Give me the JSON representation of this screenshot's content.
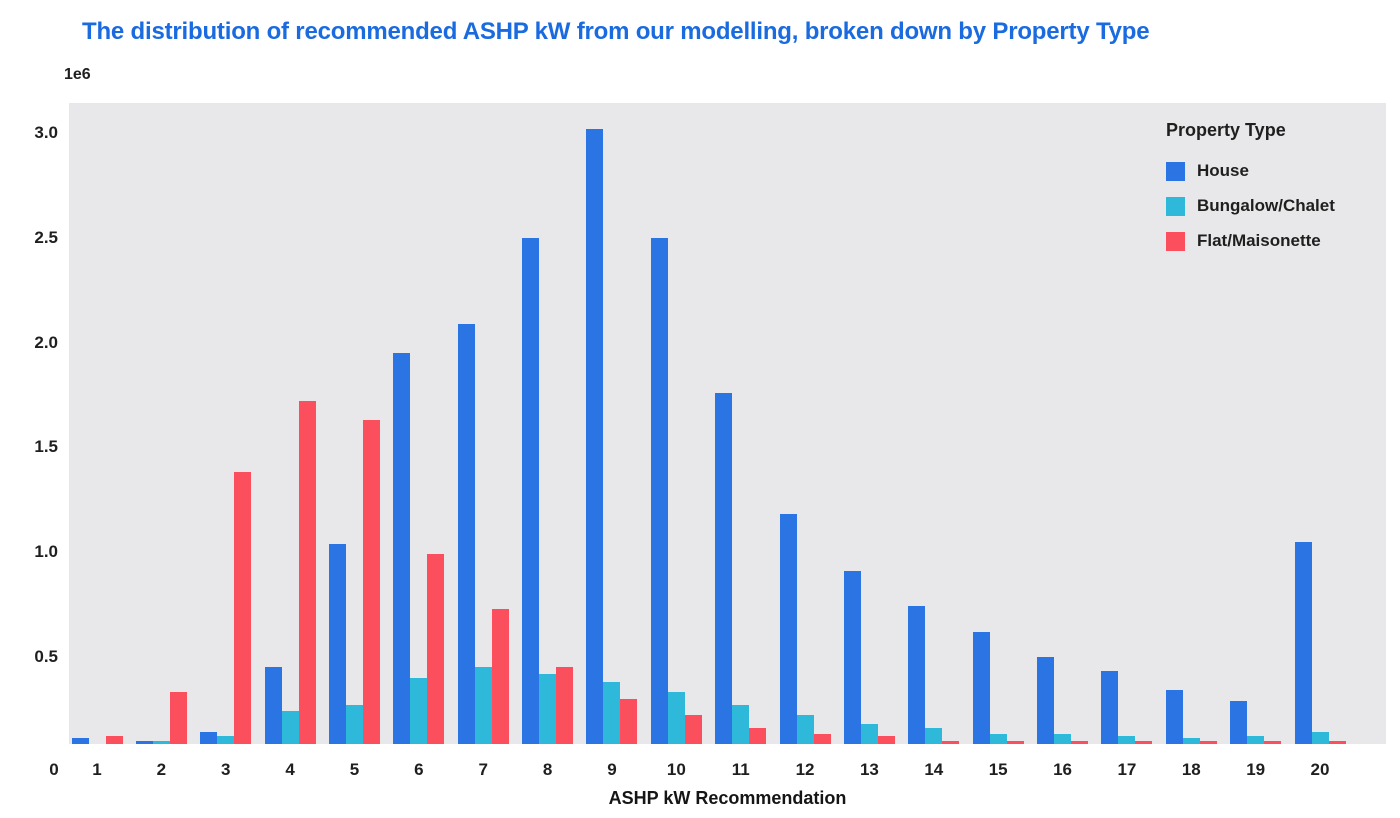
{
  "chart_data": {
    "type": "bar",
    "title": "The distribution of recommended ASHP kW from our modelling, broken down by Property Type",
    "xlabel": "ASHP kW Recommendation",
    "ylabel": "",
    "y_offset_label": "1e6",
    "unit_scale": 1000000,
    "grid": false,
    "plot_background": "#e8e8ea",
    "title_color": "#1a6be0",
    "legend_title": "Property Type",
    "legend_position": "upper right",
    "x_ticks": [
      0,
      1,
      2,
      3,
      4,
      5,
      6,
      7,
      8,
      9,
      10,
      11,
      12,
      13,
      14,
      15,
      16,
      17,
      18,
      19,
      20
    ],
    "y_tick_values": [
      0.5,
      1.0,
      1.5,
      2.0,
      2.5,
      3.0
    ],
    "ylim": [
      0,
      3.17
    ],
    "categories": [
      1,
      2,
      3,
      4,
      5,
      6,
      7,
      8,
      9,
      10,
      11,
      12,
      13,
      14,
      15,
      16,
      17,
      18,
      19,
      20
    ],
    "series": [
      {
        "name": "House",
        "color": "#2b74e4",
        "values": [
          0.11,
          0.1,
          0.14,
          0.45,
          1.04,
          1.95,
          2.09,
          2.5,
          3.02,
          2.5,
          1.76,
          1.18,
          0.91,
          0.74,
          0.62,
          0.5,
          0.43,
          0.34,
          0.29,
          1.05
        ]
      },
      {
        "name": "Bungalow/Chalet",
        "color": "#2eb9db",
        "values": [
          0.05,
          0.1,
          0.12,
          0.24,
          0.27,
          0.4,
          0.45,
          0.42,
          0.38,
          0.33,
          0.27,
          0.22,
          0.18,
          0.16,
          0.13,
          0.13,
          0.12,
          0.11,
          0.12,
          0.14
        ]
      },
      {
        "name": "Flat/Maisonette",
        "color": "#fb4f5d",
        "values": [
          0.12,
          0.33,
          1.38,
          1.72,
          1.63,
          0.99,
          0.73,
          0.45,
          0.3,
          0.22,
          0.16,
          0.13,
          0.12,
          0.1,
          0.1,
          0.1,
          0.1,
          0.1,
          0.1,
          0.1
        ]
      }
    ]
  }
}
